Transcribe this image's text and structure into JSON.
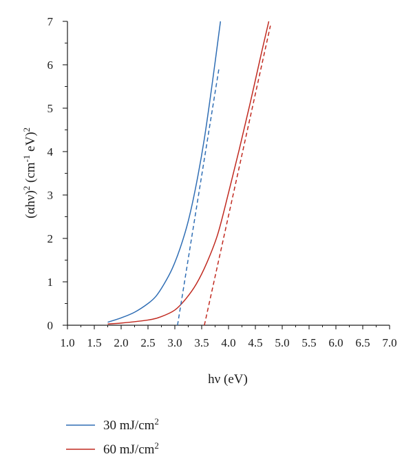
{
  "chart_data": {
    "type": "line",
    "title": "",
    "xlabel": "hν (eV)",
    "ylabel_main": "(αhν)",
    "ylabel_exp1": "2",
    "ylabel_unit_open": " (cm",
    "ylabel_unit_exp": "-1",
    "ylabel_unit_close": " eV)",
    "ylabel_exp2": "2",
    "xlim": [
      1.0,
      7.0
    ],
    "ylim": [
      0,
      7
    ],
    "x_ticks": [
      "1.0",
      "1.5",
      "2.0",
      "2.5",
      "3.0",
      "3.5",
      "4.0",
      "4.5",
      "5.0",
      "5.5",
      "6.0",
      "6.5",
      "7.0"
    ],
    "y_ticks": [
      "0",
      "1",
      "2",
      "3",
      "4",
      "5",
      "6",
      "7"
    ],
    "grid": false,
    "legend_position": "bottom-left",
    "series": [
      {
        "name": "30 mJ/cm",
        "name_sup": "2",
        "color": "#2e6db4",
        "style": "solid",
        "x": [
          1.75,
          2.0,
          2.25,
          2.5,
          2.65,
          2.8,
          2.95,
          3.1,
          3.25,
          3.4,
          3.55,
          3.7,
          3.85
        ],
        "y": [
          0.07,
          0.17,
          0.3,
          0.5,
          0.67,
          0.95,
          1.3,
          1.78,
          2.4,
          3.25,
          4.3,
          5.6,
          7.0
        ]
      },
      {
        "name": "60 mJ/cm",
        "name_sup": "2",
        "color": "#c0281e",
        "style": "solid",
        "x": [
          1.75,
          2.0,
          2.5,
          2.75,
          3.0,
          3.2,
          3.4,
          3.6,
          3.8,
          4.0,
          4.2,
          4.4,
          4.6,
          4.75
        ],
        "y": [
          0.03,
          0.05,
          0.12,
          0.2,
          0.35,
          0.6,
          0.95,
          1.45,
          2.1,
          3.05,
          4.05,
          5.1,
          6.2,
          7.0
        ]
      },
      {
        "color": "#2e6db4",
        "style": "dashed",
        "x": [
          3.05,
          3.82
        ],
        "y": [
          0.0,
          5.9
        ]
      },
      {
        "color": "#c0281e",
        "style": "dashed",
        "x": [
          3.55,
          4.78
        ],
        "y": [
          0.0,
          6.9
        ]
      }
    ]
  }
}
